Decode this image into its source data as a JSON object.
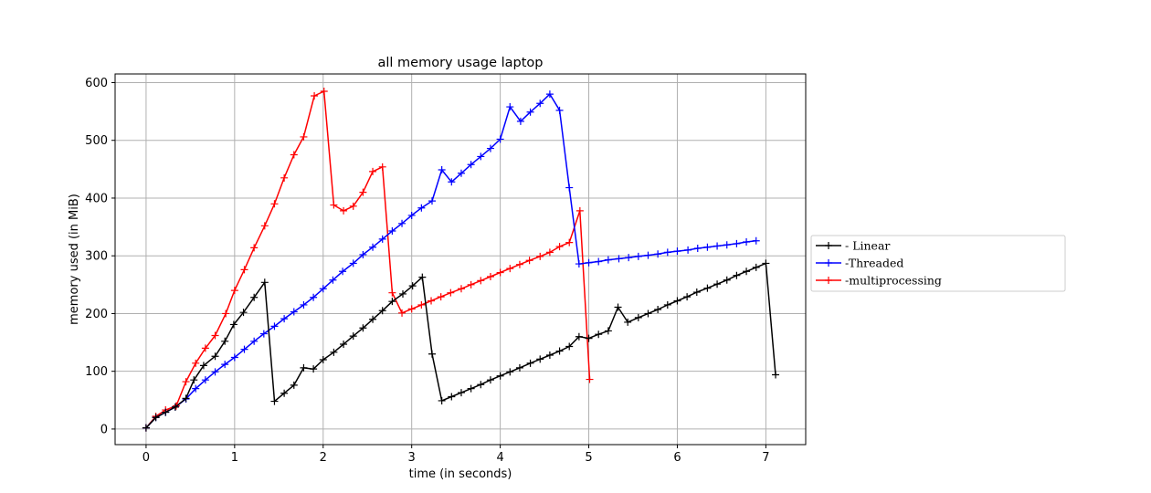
{
  "chart_data": {
    "type": "line",
    "title": "all memory usage laptop",
    "xlabel": "time (in seconds)",
    "ylabel": "memory used (in MiB)",
    "xlim": [
      -0.35,
      7.45
    ],
    "ylim": [
      -27,
      615
    ],
    "xticks": [
      0,
      1,
      2,
      3,
      4,
      5,
      6,
      7
    ],
    "yticks": [
      0,
      100,
      200,
      300,
      400,
      500,
      600
    ],
    "grid": true,
    "legend": "outside-right",
    "marker": "+",
    "series": [
      {
        "name": "- Linear",
        "color": "#000000",
        "x": [
          0,
          0.11,
          0.22,
          0.33,
          0.45,
          0.54,
          0.65,
          0.78,
          0.89,
          0.99,
          1.1,
          1.22,
          1.34,
          1.45,
          1.56,
          1.67,
          1.78,
          1.89,
          2.0,
          2.12,
          2.23,
          2.34,
          2.45,
          2.56,
          2.67,
          2.78,
          2.9,
          3.01,
          3.12,
          3.23,
          3.34,
          3.45,
          3.56,
          3.67,
          3.78,
          3.89,
          4.0,
          4.11,
          4.22,
          4.34,
          4.45,
          4.56,
          4.67,
          4.78,
          4.89,
          5.0,
          5.11,
          5.22,
          5.33,
          5.44,
          5.56,
          5.67,
          5.78,
          5.89,
          6.0,
          6.11,
          6.22,
          6.34,
          6.45,
          6.56,
          6.67,
          6.78,
          6.89,
          7.0,
          7.11
        ],
        "y": [
          2,
          20,
          29,
          38,
          53,
          85,
          110,
          126,
          152,
          181,
          202,
          228,
          254,
          48,
          62,
          76,
          106,
          104,
          120,
          133,
          147,
          161,
          175,
          190,
          205,
          221,
          234,
          248,
          263,
          130,
          49,
          56,
          63,
          70,
          77,
          85,
          92,
          99,
          106,
          114,
          121,
          128,
          135,
          143,
          160,
          157,
          164,
          170,
          211,
          185,
          193,
          200,
          207,
          215,
          222,
          229,
          237,
          244,
          251,
          258,
          266,
          273,
          280,
          287,
          94
        ]
      },
      {
        "name": "-Threaded",
        "color": "#0000ff",
        "x": [
          0,
          0.11,
          0.22,
          0.33,
          0.45,
          0.56,
          0.67,
          0.78,
          0.89,
          1.0,
          1.11,
          1.22,
          1.33,
          1.45,
          1.56,
          1.67,
          1.78,
          1.89,
          2.0,
          2.11,
          2.22,
          2.34,
          2.45,
          2.56,
          2.67,
          2.78,
          2.89,
          3.0,
          3.11,
          3.23,
          3.34,
          3.45,
          3.56,
          3.67,
          3.78,
          3.89,
          4.0,
          4.11,
          4.23,
          4.34,
          4.45,
          4.56,
          4.67,
          4.78,
          4.89,
          5.0,
          5.11,
          5.22,
          5.34,
          5.45,
          5.56,
          5.67,
          5.78,
          5.89,
          6.0,
          6.12,
          6.23,
          6.34,
          6.45,
          6.56,
          6.67,
          6.78,
          6.89
        ],
        "y": [
          2,
          20,
          29,
          38,
          52,
          70,
          85,
          99,
          112,
          124,
          138,
          152,
          165,
          178,
          191,
          203,
          215,
          228,
          243,
          258,
          273,
          287,
          302,
          315,
          329,
          343,
          356,
          370,
          383,
          395,
          449,
          428,
          443,
          458,
          472,
          486,
          502,
          558,
          533,
          549,
          564,
          580,
          552,
          418,
          286,
          288,
          290,
          293,
          295,
          297,
          299,
          301,
          303,
          306,
          308,
          310,
          313,
          315,
          317,
          319,
          321,
          324,
          326
        ]
      },
      {
        "name": "-multiprocessing",
        "color": "#ff0000",
        "x": [
          0,
          0.11,
          0.22,
          0.34,
          0.45,
          0.56,
          0.67,
          0.78,
          0.9,
          1.0,
          1.11,
          1.22,
          1.34,
          1.45,
          1.56,
          1.67,
          1.78,
          1.9,
          2.01,
          2.12,
          2.23,
          2.34,
          2.45,
          2.56,
          2.67,
          2.78,
          2.89,
          3.0,
          3.11,
          3.22,
          3.33,
          3.44,
          3.56,
          3.67,
          3.78,
          3.89,
          4.0,
          4.11,
          4.22,
          4.33,
          4.45,
          4.56,
          4.67,
          4.78,
          4.9,
          5.01
        ],
        "y": [
          2,
          22,
          33,
          40,
          82,
          114,
          140,
          162,
          200,
          240,
          276,
          314,
          352,
          390,
          435,
          475,
          506,
          577,
          585,
          388,
          378,
          386,
          410,
          446,
          454,
          236,
          201,
          208,
          215,
          222,
          229,
          236,
          243,
          250,
          257,
          264,
          271,
          278,
          285,
          292,
          299,
          306,
          316,
          323,
          378,
          86
        ]
      }
    ]
  }
}
